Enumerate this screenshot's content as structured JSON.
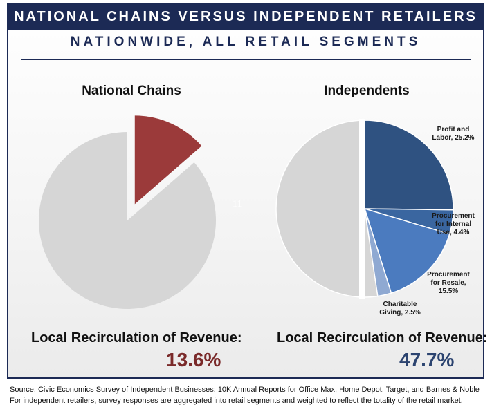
{
  "title": "NATIONAL CHAINS VERSUS INDEPENDENT RETAILERS",
  "subtitle": "NATIONWIDE, ALL RETAIL SEGMENTS",
  "center_mark": "11",
  "chart_data": [
    {
      "type": "pie",
      "title": "National Chains",
      "slices": [
        {
          "label": "",
          "value": 13.6,
          "color": "#9b3a3a",
          "exploded": true
        },
        {
          "label": "",
          "value": 86.4,
          "color": "#d6d6d6",
          "exploded": false
        }
      ],
      "caption_label": "Local Recirculation of Revenue:",
      "caption_value": "13.6%",
      "caption_color": "#7a2a2a"
    },
    {
      "type": "pie",
      "title": "Independents",
      "slices": [
        {
          "label_lines": [
            "Profit and",
            "Labor, 25.2%"
          ],
          "value": 25.2,
          "color": "#2f5281",
          "exploded": false
        },
        {
          "label_lines": [
            "Procurement",
            "for Internal",
            "Use, 4.4%"
          ],
          "value": 4.4,
          "color": "#3a66a0",
          "exploded": false
        },
        {
          "label_lines": [
            "Procurement",
            "for Resale,",
            "15.5%"
          ],
          "value": 15.5,
          "color": "#4b7bbf",
          "exploded": false
        },
        {
          "label_lines": [
            "Charitable",
            "Giving, 2.5%"
          ],
          "value": 2.5,
          "color": "#8fa9d2",
          "exploded": false
        },
        {
          "label_lines": [],
          "value": 52.3,
          "color": "#d6d6d6",
          "exploded": false
        }
      ],
      "caption_label": "Local Recirculation of Revenue:",
      "caption_value": "47.7%",
      "caption_color": "#2c4470"
    }
  ],
  "source_line1": "Source: Civic Economics Survey of Independent Businesses; 10K Annual Reports for Office Max, Home Depot, Target, and Barnes & Noble",
  "source_line2": "For independent retailers, survey responses are aggregated into retail segments and weighted to reflect the totality of the retail market."
}
